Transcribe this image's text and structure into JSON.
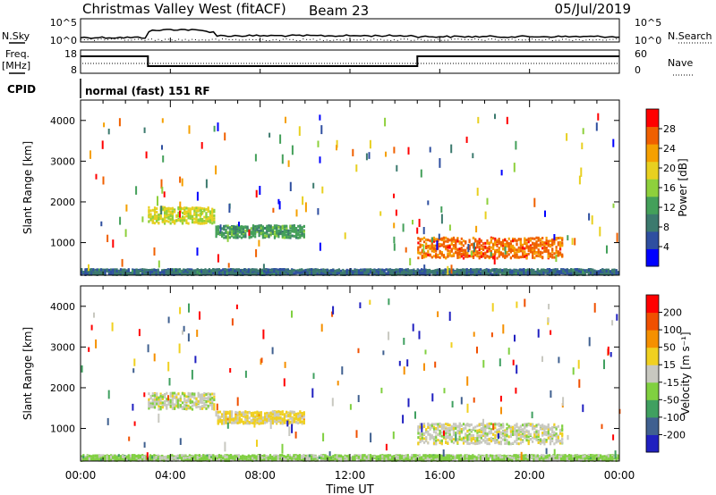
{
  "header": {
    "site": "Christmas Valley West (fitACF)",
    "beam": "Beam 23",
    "date": "05/Jul/2019"
  },
  "top_panels": {
    "nsky_label": "N.Sky",
    "nsky_ticks": [
      "10^5",
      "10^0"
    ],
    "nsearch_label": "N.Search",
    "nsearch_ticks": [
      "10^5",
      "10^0"
    ],
    "freq_label": "Freq.",
    "freq_units": "[MHz]",
    "freq_ticks": [
      "18",
      "8"
    ],
    "nave_label": "Nave",
    "nave_ticks": [
      "60",
      "0"
    ],
    "cpid_label": "CPID",
    "cpid_value": "normal (fast) 151 RF"
  },
  "x_axis": {
    "ticks": [
      "00:00",
      "04:00",
      "08:00",
      "12:00",
      "16:00",
      "20:00",
      "00:00"
    ],
    "label": "Time UT"
  },
  "colors": {
    "power_scale": [
      "#0000ff",
      "#2f4fa0",
      "#3c7a6e",
      "#44a05a",
      "#8ed03c",
      "#e8d020",
      "#f5a000",
      "#f06000",
      "#ff0000"
    ],
    "velocity_scale": [
      "#2020c0",
      "#406090",
      "#40a060",
      "#80d040",
      "#c8c8c0",
      "#f0d020",
      "#f59000",
      "#f05000",
      "#ff0000"
    ]
  },
  "chart_data": [
    {
      "type": "heatmap",
      "title": "",
      "xlabel": "",
      "ylabel": "Slant Range [km]",
      "ylim": [
        200,
        4500
      ],
      "y_ticks": [
        "1000",
        "2000",
        "3000",
        "4000"
      ],
      "colorbar": {
        "label": "Power [dB]",
        "ticks": [
          "28",
          "24",
          "20",
          "16",
          "12",
          "8",
          "4"
        ],
        "range": [
          0,
          32
        ]
      },
      "features": [
        {
          "t_start": 3.0,
          "t_end": 6.0,
          "range_center": 1700,
          "range_width": 400,
          "value": 18
        },
        {
          "t_start": 6.0,
          "t_end": 10.0,
          "range_center": 1300,
          "range_width": 300,
          "value": 12
        },
        {
          "t_start": 15.0,
          "t_end": 21.5,
          "range_center": 900,
          "range_width": 500,
          "value": 26
        },
        {
          "t_start": 0.0,
          "t_end": 24.0,
          "range_center": 300,
          "range_width": 150,
          "value": 8
        }
      ]
    },
    {
      "type": "heatmap",
      "title": "",
      "xlabel": "Time UT",
      "ylabel": "Slant Range [km]",
      "ylim": [
        200,
        4500
      ],
      "y_ticks": [
        "1000",
        "2000",
        "3000",
        "4000"
      ],
      "colorbar": {
        "label": "Velocity [m s⁻¹]",
        "ticks": [
          "200",
          "100",
          "50",
          "15",
          "-15",
          "-50",
          "-100",
          "-200"
        ],
        "range": [
          -250,
          250
        ]
      },
      "features": [
        {
          "t_start": 3.0,
          "t_end": 6.0,
          "range_center": 1700,
          "range_width": 400,
          "value": 0
        },
        {
          "t_start": 6.0,
          "t_end": 10.0,
          "range_center": 1300,
          "range_width": 300,
          "value": 40
        },
        {
          "t_start": 15.0,
          "t_end": 21.5,
          "range_center": 900,
          "range_width": 500,
          "value": 0
        },
        {
          "t_start": 0.0,
          "t_end": 24.0,
          "range_center": 300,
          "range_width": 150,
          "value": -40
        }
      ]
    }
  ]
}
